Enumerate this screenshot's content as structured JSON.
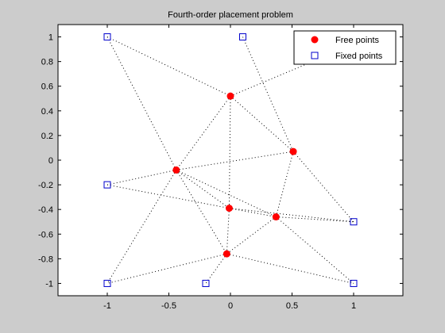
{
  "chart_data": {
    "type": "scatter",
    "title": "Fourth-order placement problem",
    "xlabel": "",
    "ylabel": "",
    "xlim": [
      -1.4,
      1.4
    ],
    "ylim": [
      -1.1,
      1.1
    ],
    "xticks": [
      -1,
      -0.5,
      0,
      0.5,
      1
    ],
    "xtick_labels": [
      "-1",
      "-0.5",
      "0",
      "0.5",
      "1"
    ],
    "yticks": [
      1,
      0.8,
      0.6,
      0.4,
      0.2,
      0,
      -0.2,
      -0.4,
      -0.6,
      -0.8,
      -1
    ],
    "ytick_labels": [
      "1",
      "0.8",
      "0.6",
      "0.4",
      "0.2",
      "0",
      "-0.2",
      "-0.4",
      "-0.6",
      "-0.8",
      "-1"
    ],
    "grid": false,
    "legend_position": "top-right",
    "series": [
      {
        "name": "Free points",
        "marker": "filled-circle",
        "color": "#ff0000",
        "points": [
          [
            0.0,
            0.52
          ],
          [
            0.51,
            0.07
          ],
          [
            -0.44,
            -0.08
          ],
          [
            -0.01,
            -0.39
          ],
          [
            0.37,
            -0.46
          ],
          [
            -0.03,
            -0.76
          ]
        ]
      },
      {
        "name": "Fixed points",
        "marker": "open-square",
        "color": "#0000cc",
        "points": [
          [
            -1,
            1
          ],
          [
            0.1,
            1
          ],
          [
            -1,
            -0.2
          ],
          [
            1,
            -0.5
          ],
          [
            -1,
            -1
          ],
          [
            -0.2,
            -1
          ],
          [
            1,
            -1
          ]
        ]
      }
    ],
    "links": [
      [
        [
          -1,
          1
        ],
        [
          -0.44,
          -0.08
        ]
      ],
      [
        [
          -1,
          1
        ],
        [
          0.0,
          0.52
        ]
      ],
      [
        [
          0.1,
          1
        ],
        [
          0.51,
          0.07
        ]
      ],
      [
        [
          0.0,
          0.52
        ],
        [
          0.51,
          0.07
        ]
      ],
      [
        [
          0.0,
          0.52
        ],
        [
          -0.44,
          -0.08
        ]
      ],
      [
        [
          0.0,
          0.52
        ],
        [
          -0.01,
          -0.39
        ]
      ],
      [
        [
          0.0,
          0.52
        ],
        [
          1.0,
          0.94
        ]
      ],
      [
        [
          0.51,
          0.07
        ],
        [
          -0.44,
          -0.08
        ]
      ],
      [
        [
          0.51,
          0.07
        ],
        [
          0.37,
          -0.46
        ]
      ],
      [
        [
          0.51,
          0.07
        ],
        [
          1,
          -0.5
        ]
      ],
      [
        [
          -1,
          -0.2
        ],
        [
          -0.44,
          -0.08
        ]
      ],
      [
        [
          -1,
          -0.2
        ],
        [
          -0.01,
          -0.39
        ]
      ],
      [
        [
          -0.44,
          -0.08
        ],
        [
          -0.01,
          -0.39
        ]
      ],
      [
        [
          -0.44,
          -0.08
        ],
        [
          0.37,
          -0.46
        ]
      ],
      [
        [
          -0.44,
          -0.08
        ],
        [
          -1,
          -1
        ]
      ],
      [
        [
          -0.44,
          -0.08
        ],
        [
          -0.03,
          -0.76
        ]
      ],
      [
        [
          -0.01,
          -0.39
        ],
        [
          0.37,
          -0.46
        ]
      ],
      [
        [
          -0.01,
          -0.39
        ],
        [
          -0.03,
          -0.76
        ]
      ],
      [
        [
          -0.01,
          -0.39
        ],
        [
          1,
          -0.5
        ]
      ],
      [
        [
          0.37,
          -0.46
        ],
        [
          1,
          -0.5
        ]
      ],
      [
        [
          0.37,
          -0.46
        ],
        [
          1,
          -1
        ]
      ],
      [
        [
          0.37,
          -0.46
        ],
        [
          -0.03,
          -0.76
        ]
      ],
      [
        [
          -0.03,
          -0.76
        ],
        [
          -1,
          -1
        ]
      ],
      [
        [
          -0.03,
          -0.76
        ],
        [
          -0.2,
          -1
        ]
      ],
      [
        [
          -0.03,
          -0.76
        ],
        [
          1,
          -1
        ]
      ]
    ]
  }
}
